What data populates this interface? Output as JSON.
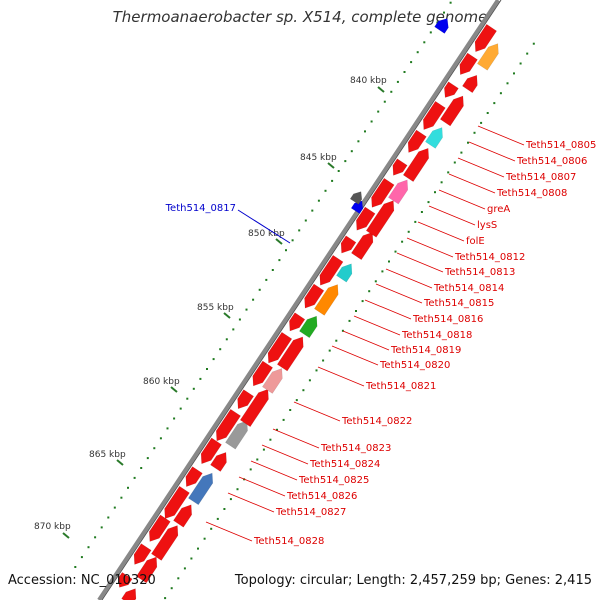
{
  "title": "Thermoanaerobacter sp. X514, complete genome",
  "accession": "Accession: NC_010320",
  "topology": "Topology: circular; Length: 2,457,259 bp; Genes: 2,415",
  "scale_labels": [
    "840 kbp",
    "845 kbp",
    "850 kbp",
    "855 kbp",
    "860 kbp",
    "865 kbp",
    "870 kbp"
  ],
  "highlight_gene": "Teth514_0817",
  "gene_labels": [
    "Teth514_0805",
    "Teth514_0806",
    "Teth514_0807",
    "Teth514_0808",
    "greA",
    "lysS",
    "folE",
    "Teth514_0812",
    "Teth514_0813",
    "Teth514_0814",
    "Teth514_0815",
    "Teth514_0816",
    "Teth514_0818",
    "Teth514_0819",
    "Teth514_0820",
    "Teth514_0821",
    "Teth514_0822",
    "Teth514_0823",
    "Teth514_0824",
    "Teth514_0825",
    "Teth514_0826",
    "Teth514_0827",
    "Teth514_0828"
  ],
  "colors": {
    "label_red": "#dd0000",
    "highlight_blue": "#0000cc",
    "backbone": "#888888",
    "scale_tick": "#2a7a2a"
  }
}
